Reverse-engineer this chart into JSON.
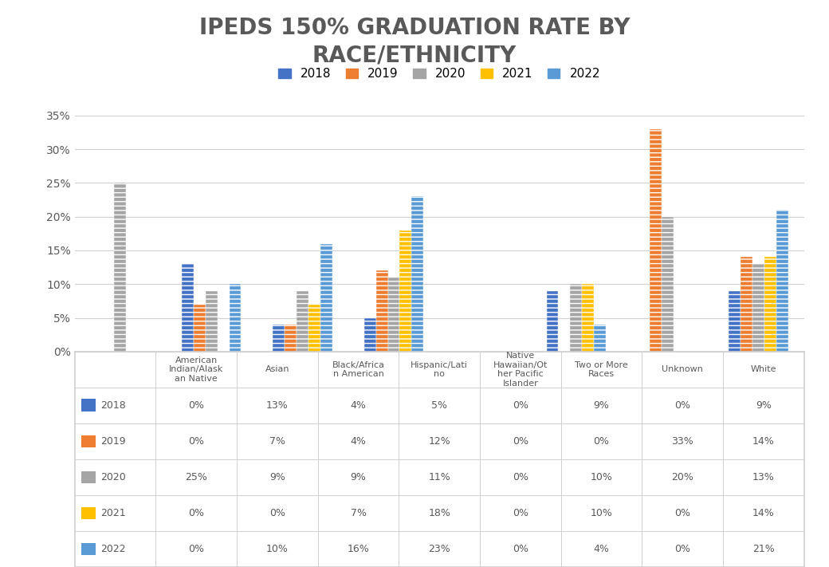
{
  "title": "IPEDS 150% GRADUATION RATE BY\nRACE/ETHNICITY",
  "years": [
    "2018",
    "2019",
    "2020",
    "2021",
    "2022"
  ],
  "colors": [
    "#4472C4",
    "#ED7D31",
    "#A5A5A5",
    "#FFC000",
    "#5B9BD5"
  ],
  "data": {
    "2018": [
      0,
      13,
      4,
      5,
      0,
      9,
      0,
      9
    ],
    "2019": [
      0,
      7,
      4,
      12,
      0,
      0,
      33,
      14
    ],
    "2020": [
      25,
      9,
      9,
      11,
      0,
      10,
      20,
      13
    ],
    "2021": [
      0,
      0,
      7,
      18,
      0,
      10,
      0,
      14
    ],
    "2022": [
      0,
      10,
      16,
      23,
      0,
      4,
      0,
      21
    ]
  },
  "cat_labels": [
    "American\nIndian/Alask\nan Native",
    "Asian",
    "Black/Africa\nn American",
    "Hispanic/Lati\nno",
    "Native\nHawaiian/Ot\nher Pacific\nIslander",
    "Two or More\nRaces",
    "Unknown",
    "White"
  ],
  "ylim_max": 0.37,
  "yticks": [
    0,
    0.05,
    0.1,
    0.15,
    0.2,
    0.25,
    0.3,
    0.35
  ],
  "ytick_labels": [
    "0%",
    "5%",
    "10%",
    "15%",
    "20%",
    "25%",
    "30%",
    "35%"
  ],
  "bar_width": 0.13,
  "title_fontsize": 20,
  "legend_fontsize": 11,
  "axis_fontsize": 10,
  "table_fontsize": 9,
  "bg_color": "#FFFFFF",
  "text_color": "#595959",
  "grid_color": "#D0D0D0"
}
